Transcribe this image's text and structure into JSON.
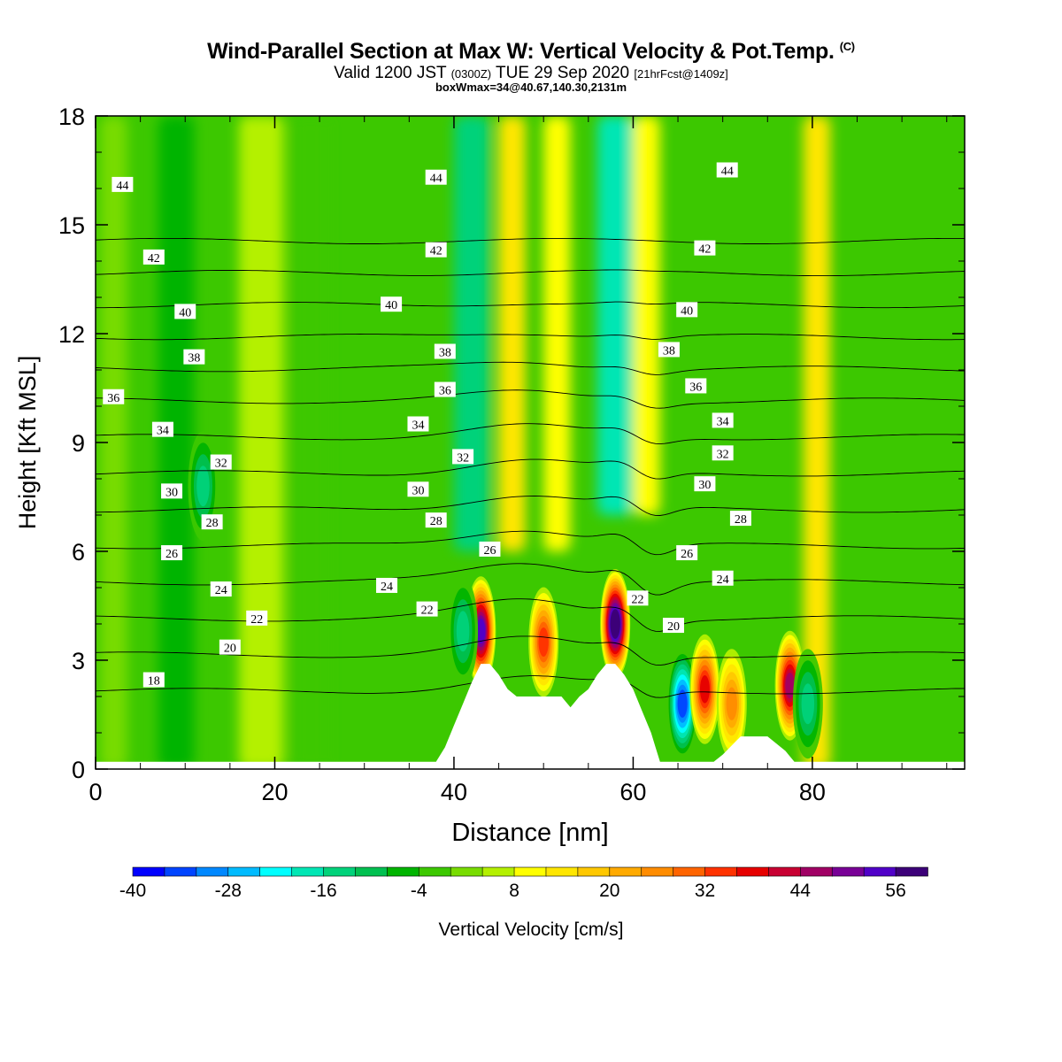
{
  "title": {
    "main": "Wind-Parallel Section at Max W: Vertical Velocity & Pot.Temp.",
    "copyright": "(C)",
    "valid_prefix": "Valid 1200 JST",
    "valid_zulu": "(0300Z)",
    "valid_date": "TUE 29 Sep 2020",
    "forecast": "[21hrFcst@1409z]",
    "boxwmax": "boxWmax=34@40.67,140.30,2131m"
  },
  "chart_data": {
    "type": "heatmap",
    "xlabel": "Distance [nm]",
    "ylabel": "Height [Kft MSL]",
    "xlim": [
      0,
      97
    ],
    "ylim": [
      0,
      18
    ],
    "x_ticks": [
      0,
      20,
      40,
      60,
      80
    ],
    "y_ticks": [
      0,
      3,
      6,
      9,
      12,
      15,
      18
    ],
    "colorbar": {
      "label": "Vertical Velocity [cm/s]",
      "min": -40,
      "max": 60,
      "step": 4,
      "tick_labels": [
        -40,
        -28,
        -16,
        -4,
        8,
        20,
        32,
        44,
        56
      ],
      "colors": [
        "#0000ff",
        "#0044ff",
        "#0088ff",
        "#00bbff",
        "#00ffff",
        "#00e6b4",
        "#00d27a",
        "#00c050",
        "#00b400",
        "#3cc800",
        "#78dc00",
        "#b4f000",
        "#ffff00",
        "#ffe600",
        "#ffc800",
        "#ffaa00",
        "#ff8c00",
        "#ff6400",
        "#ff3200",
        "#e60000",
        "#c80032",
        "#a00064",
        "#780096",
        "#5000c8",
        "#3c0078"
      ]
    },
    "fill_background": "#3cc800",
    "updraft_bands": [
      {
        "x_range": [
          0.5,
          3.5
        ],
        "y_range": [
          0,
          18
        ],
        "value": 2
      },
      {
        "x_range": [
          7,
          11
        ],
        "y_range": [
          0,
          18
        ],
        "value": -6
      },
      {
        "x_range": [
          16,
          21
        ],
        "y_range": [
          0,
          18
        ],
        "value": 6
      },
      {
        "x_range": [
          22,
          26
        ],
        "y_range": [
          0,
          18
        ],
        "value": -4
      },
      {
        "x_range": [
          40,
          44
        ],
        "y_range": [
          6,
          18
        ],
        "value": -14
      },
      {
        "x_range": [
          45,
          48
        ],
        "y_range": [
          6,
          18
        ],
        "value": 12
      },
      {
        "x_range": [
          50,
          53
        ],
        "y_range": [
          6,
          18
        ],
        "value": 10
      },
      {
        "x_range": [
          56,
          60
        ],
        "y_range": [
          7,
          18
        ],
        "value": -20
      },
      {
        "x_range": [
          60,
          63
        ],
        "y_range": [
          7,
          18
        ],
        "value": 10
      },
      {
        "x_range": [
          79,
          82
        ],
        "y_range": [
          0,
          18
        ],
        "value": 12
      }
    ],
    "wave_cells": [
      {
        "x": 43,
        "y": 3.8,
        "value": 48
      },
      {
        "x": 50,
        "y": 3.5,
        "value": 28
      },
      {
        "x": 58,
        "y": 4.0,
        "value": 54
      },
      {
        "x": 41,
        "y": 3.8,
        "value": -12
      },
      {
        "x": 65.5,
        "y": 1.8,
        "value": -32
      },
      {
        "x": 68,
        "y": 2.2,
        "value": 30
      },
      {
        "x": 71,
        "y": 1.8,
        "value": 20
      },
      {
        "x": 77.5,
        "y": 2.3,
        "value": 40
      },
      {
        "x": 79.5,
        "y": 1.8,
        "value": -10
      },
      {
        "x": 12,
        "y": 7.8,
        "value": -12
      }
    ],
    "terrain": {
      "x": [
        0,
        38,
        39,
        40,
        41,
        42,
        43,
        44,
        45,
        46,
        47,
        52,
        53,
        54,
        55,
        56,
        57,
        58,
        59,
        60,
        61,
        62,
        62.5,
        63,
        69,
        70,
        72,
        73,
        75,
        77,
        78,
        80,
        97
      ],
      "height": [
        0.2,
        0.2,
        0.6,
        1.2,
        1.8,
        2.4,
        2.9,
        2.9,
        2.6,
        2.2,
        2.0,
        2.0,
        1.7,
        2.0,
        2.2,
        2.6,
        2.9,
        2.9,
        2.6,
        2.2,
        1.6,
        1.0,
        0.6,
        0.2,
        0.2,
        0.4,
        0.9,
        0.9,
        0.9,
        0.5,
        0.2,
        0.2,
        0.2
      ]
    },
    "theta_contours": {
      "levels": [
        18,
        20,
        22,
        24,
        26,
        28,
        30,
        32,
        34,
        36,
        38,
        40,
        42,
        44
      ],
      "labels": [
        {
          "text": "44",
          "x": 3,
          "y": 16.1
        },
        {
          "text": "42",
          "x": 6.5,
          "y": 14.1
        },
        {
          "text": "40",
          "x": 10,
          "y": 12.6
        },
        {
          "text": "38",
          "x": 11,
          "y": 11.35
        },
        {
          "text": "36",
          "x": 2,
          "y": 10.25
        },
        {
          "text": "34",
          "x": 7.5,
          "y": 9.35
        },
        {
          "text": "32",
          "x": 14,
          "y": 8.45
        },
        {
          "text": "30",
          "x": 8.5,
          "y": 7.65
        },
        {
          "text": "28",
          "x": 13,
          "y": 6.8
        },
        {
          "text": "26",
          "x": 8.5,
          "y": 5.95
        },
        {
          "text": "24",
          "x": 14,
          "y": 4.95
        },
        {
          "text": "22",
          "x": 18,
          "y": 4.15
        },
        {
          "text": "20",
          "x": 15,
          "y": 3.35
        },
        {
          "text": "18",
          "x": 6.5,
          "y": 2.45
        },
        {
          "text": "44",
          "x": 38,
          "y": 16.3
        },
        {
          "text": "42",
          "x": 38,
          "y": 14.3
        },
        {
          "text": "40",
          "x": 33,
          "y": 12.8
        },
        {
          "text": "38",
          "x": 39,
          "y": 11.5
        },
        {
          "text": "36",
          "x": 39,
          "y": 10.45
        },
        {
          "text": "34",
          "x": 36,
          "y": 9.5
        },
        {
          "text": "32",
          "x": 41,
          "y": 8.6
        },
        {
          "text": "30",
          "x": 36,
          "y": 7.7
        },
        {
          "text": "28",
          "x": 38,
          "y": 6.85
        },
        {
          "text": "26",
          "x": 44,
          "y": 6.05
        },
        {
          "text": "24",
          "x": 32.5,
          "y": 5.05
        },
        {
          "text": "22",
          "x": 37,
          "y": 4.4
        },
        {
          "text": "44",
          "x": 70.5,
          "y": 16.5
        },
        {
          "text": "42",
          "x": 68,
          "y": 14.35
        },
        {
          "text": "40",
          "x": 66,
          "y": 12.65
        },
        {
          "text": "38",
          "x": 64,
          "y": 11.55
        },
        {
          "text": "36",
          "x": 67,
          "y": 10.55
        },
        {
          "text": "34",
          "x": 70,
          "y": 9.6
        },
        {
          "text": "32",
          "x": 70,
          "y": 8.7
        },
        {
          "text": "30",
          "x": 68,
          "y": 7.85
        },
        {
          "text": "28",
          "x": 72,
          "y": 6.9
        },
        {
          "text": "26",
          "x": 66,
          "y": 5.95
        },
        {
          "text": "24",
          "x": 70,
          "y": 5.25
        },
        {
          "text": "22",
          "x": 60.5,
          "y": 4.7
        },
        {
          "text": "20",
          "x": 64.5,
          "y": 3.95
        }
      ]
    }
  }
}
